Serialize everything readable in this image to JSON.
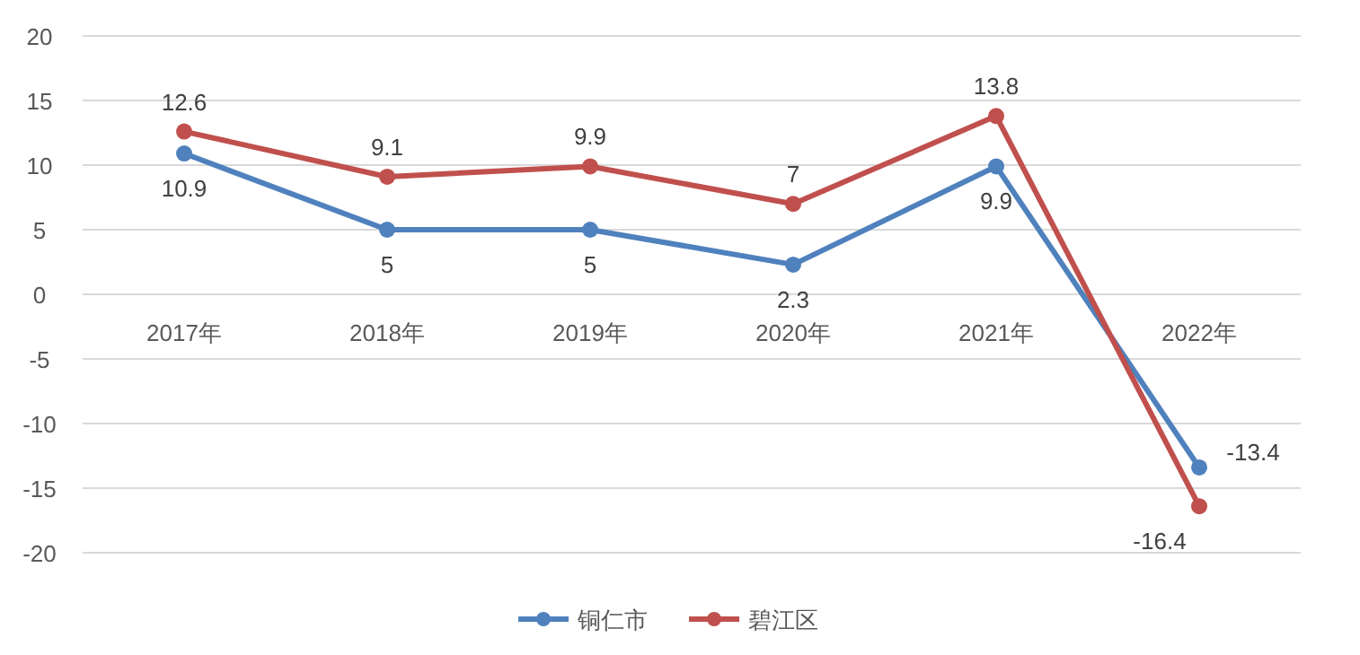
{
  "chart_data": {
    "type": "line",
    "categories": [
      "2017年",
      "2018年",
      "2019年",
      "2020年",
      "2021年",
      "2022年"
    ],
    "series": [
      {
        "name": "铜仁市",
        "color": "#4f81bd",
        "values": [
          10.9,
          5,
          5,
          2.3,
          9.9,
          -13.4
        ]
      },
      {
        "name": "碧江区",
        "color": "#c0504d",
        "values": [
          12.6,
          9.1,
          9.9,
          7,
          13.8,
          -16.4
        ]
      }
    ],
    "ylim": [
      -20,
      20
    ],
    "yticks": [
      -20,
      -15,
      -10,
      -5,
      0,
      5,
      10,
      15,
      20
    ],
    "grid": "y",
    "legend": "bottom",
    "marker": "circle",
    "data_labels": true
  }
}
